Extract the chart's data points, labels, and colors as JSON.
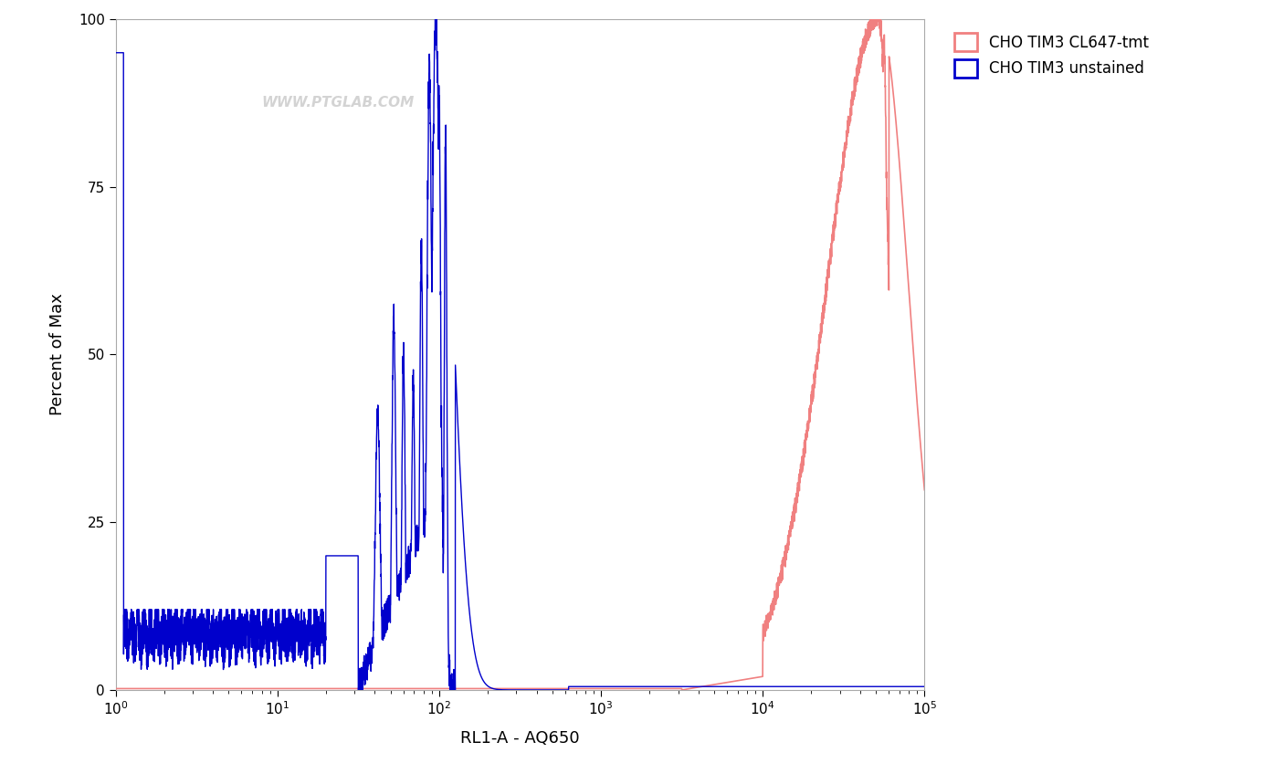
{
  "xlabel": "RL1-A - AQ650",
  "ylabel": "Percent of Max",
  "ylim": [
    0,
    100
  ],
  "yticks": [
    0,
    25,
    50,
    75,
    100
  ],
  "watermark": "WWW.PTGLAB.COM",
  "legend_entries": [
    "CHO TIM3 CL647-tmt",
    "CHO TIM3 unstained"
  ],
  "red_color": "#F08080",
  "blue_color": "#0000CC",
  "background_color": "#ffffff",
  "xlabel_fontsize": 13,
  "ylabel_fontsize": 13,
  "tick_fontsize": 11,
  "legend_fontsize": 12
}
